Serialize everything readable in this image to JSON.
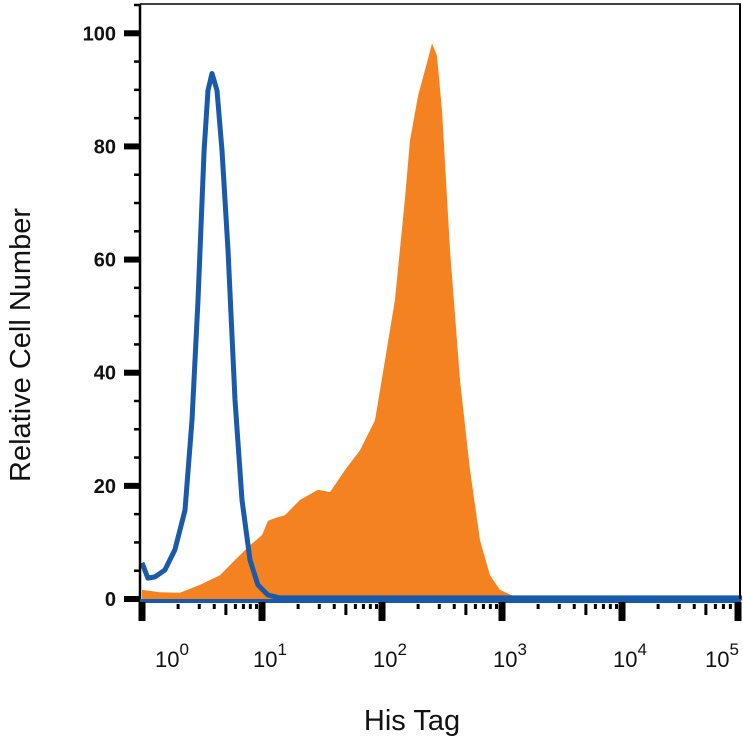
{
  "chart_data": {
    "type": "area",
    "title": "",
    "xlabel": "His Tag",
    "ylabel": "Relative Cell Number",
    "xscale": "log",
    "xlim": [
      1,
      100000
    ],
    "ylim": [
      0,
      105
    ],
    "grid": false,
    "legend": "none",
    "yticks": [
      0,
      20,
      40,
      60,
      80,
      100
    ],
    "ytick_labels": [
      "0",
      "20",
      "40",
      "60",
      "80",
      "100"
    ],
    "xticks": [
      1,
      10,
      100,
      1000,
      10000,
      100000
    ],
    "xtick_labels": [
      {
        "base": "10",
        "exp": "0"
      },
      {
        "base": "10",
        "exp": "1"
      },
      {
        "base": "10",
        "exp": "2"
      },
      {
        "base": "10",
        "exp": "3"
      },
      {
        "base": "10",
        "exp": "4"
      },
      {
        "base": "10",
        "exp": "5"
      }
    ],
    "series": [
      {
        "style": "filled",
        "color": "#f58220",
        "x": [
          1,
          1.41,
          2.07,
          3.04,
          4.47,
          5.96,
          7.94,
          10,
          11.2,
          12.8,
          15.5,
          20.7,
          29.3,
          36.9,
          49.2,
          65.6,
          87.4,
          106,
          128,
          155,
          171,
          200,
          228,
          261,
          287,
          316,
          369,
          447,
          541,
          656,
          794,
          962,
          1283,
          100000
        ],
        "y": [
          1.6,
          1.2,
          1.1,
          2.5,
          4.2,
          6.9,
          9.5,
          11.3,
          13.8,
          14.3,
          14.8,
          17.5,
          19.3,
          18.9,
          22.8,
          26.3,
          31.6,
          42.2,
          52.8,
          70.5,
          81.1,
          89,
          93.5,
          98.2,
          96.1,
          86.4,
          61.7,
          38.7,
          22.8,
          10.4,
          4.2,
          1.6,
          0.4,
          0
        ]
      },
      {
        "style": "line",
        "color": "#1a5aab",
        "x": [
          1,
          1.12,
          1.28,
          1.55,
          1.88,
          2.28,
          2.61,
          2.93,
          3.29,
          3.55,
          3.83,
          4.22,
          4.64,
          5.21,
          5.96,
          6.81,
          7.94,
          9.24,
          11.2,
          14.1,
          100000
        ],
        "y": [
          6.4,
          3.7,
          3.9,
          5.1,
          8.7,
          15.7,
          31.6,
          52.8,
          79.3,
          89.9,
          92.9,
          89.9,
          79.3,
          61.7,
          35.2,
          17.5,
          6.9,
          2.5,
          0.7,
          0.2,
          0.2
        ]
      }
    ]
  }
}
